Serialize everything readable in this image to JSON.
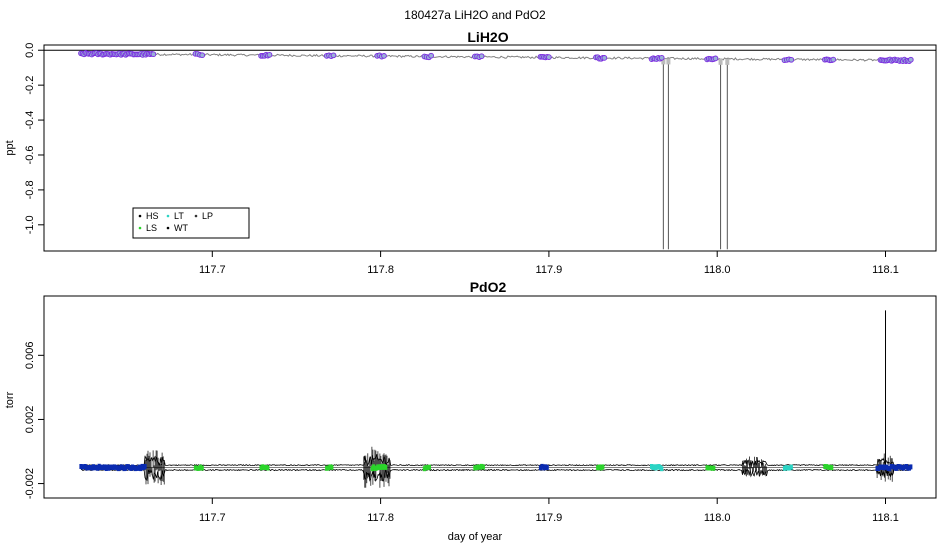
{
  "figure": {
    "main_title": "180427a   LiH2O and PdO2"
  },
  "chart_data": [
    {
      "type": "scatter",
      "title": "LiH2O",
      "xlabel": "",
      "ylabel": "ppt",
      "xlim": [
        117.6,
        118.13
      ],
      "ylim": [
        -1.15,
        0.03
      ],
      "x_ticks": [
        117.7,
        117.8,
        117.9,
        118.0,
        118.1
      ],
      "x_tick_labels": [
        "117.7",
        "117.8",
        "117.9",
        "118.0",
        "118.1"
      ],
      "y_ticks": [
        0.0,
        -0.2,
        -0.4,
        -0.6,
        -0.8,
        -1.0
      ],
      "y_tick_labels": [
        "0.0",
        "-0.2",
        "-0.4",
        "-0.6",
        "-0.8",
        "-1.0"
      ],
      "reference_line_y": 0.0,
      "trend": {
        "x": [
          117.622,
          118.115
        ],
        "y": [
          -0.02,
          -0.058
        ]
      },
      "spikes": [
        {
          "x": 117.968,
          "y_min": -1.14
        },
        {
          "x": 117.971,
          "y_min": -1.14
        },
        {
          "x": 118.002,
          "y_min": -1.14
        },
        {
          "x": 118.006,
          "y_min": -1.14
        }
      ],
      "clusters": [
        {
          "x0": 117.622,
          "x1": 117.665
        },
        {
          "x0": 117.69,
          "x1": 117.694
        },
        {
          "x0": 117.729,
          "x1": 117.734
        },
        {
          "x0": 117.768,
          "x1": 117.772
        },
        {
          "x0": 117.798,
          "x1": 117.802
        },
        {
          "x0": 117.826,
          "x1": 117.83
        },
        {
          "x0": 117.856,
          "x1": 117.86
        },
        {
          "x0": 117.895,
          "x1": 117.9
        },
        {
          "x0": 117.928,
          "x1": 117.933
        },
        {
          "x0": 117.961,
          "x1": 117.967
        },
        {
          "x0": 117.994,
          "x1": 117.999
        },
        {
          "x0": 118.04,
          "x1": 118.044
        },
        {
          "x0": 118.064,
          "x1": 118.069
        },
        {
          "x0": 118.097,
          "x1": 118.115
        }
      ],
      "legend": {
        "position": "bottom-left",
        "entries": [
          {
            "label": "HS",
            "color": "#000000"
          },
          {
            "label": "LT",
            "color": "#2bd4c4"
          },
          {
            "label": "LP",
            "color": "#333333"
          },
          {
            "label": "LS",
            "color": "#2bd42b"
          },
          {
            "label": "WT",
            "color": "#000000"
          }
        ]
      },
      "colors": {
        "trend": "#808080",
        "point_fill": "#9ab0d8",
        "point_edge": "#7b2be0",
        "spike": "#555555"
      }
    },
    {
      "type": "line",
      "title": "PdO2",
      "xlabel": "day of year",
      "ylabel": "torr",
      "xlim": [
        117.6,
        118.13
      ],
      "ylim": [
        -0.0029,
        0.0097
      ],
      "x_ticks": [
        117.7,
        117.8,
        117.9,
        118.0,
        118.1
      ],
      "x_tick_labels": [
        "117.7",
        "117.8",
        "117.9",
        "118.0",
        "118.1"
      ],
      "y_ticks": [
        0.006,
        0.002,
        -0.002
      ],
      "y_tick_labels": [
        "0.006",
        "0.002",
        "-0.002"
      ],
      "baseline": {
        "x": [
          117.622,
          118.115
        ],
        "y": [
          -0.001,
          -0.001
        ]
      },
      "spike": {
        "x": 118.1,
        "y_max": 0.0088
      },
      "noisy_regions": [
        {
          "x0": 117.66,
          "x1": 117.672,
          "amp": 0.0011
        },
        {
          "x0": 117.79,
          "x1": 117.806,
          "amp": 0.0013
        },
        {
          "x0": 118.015,
          "x1": 118.03,
          "amp": 0.0007
        },
        {
          "x0": 118.095,
          "x1": 118.105,
          "amp": 0.0009
        }
      ],
      "markers": [
        {
          "x0": 117.622,
          "x1": 117.66,
          "color": "#0a2bb0"
        },
        {
          "x0": 117.69,
          "x1": 117.694,
          "color": "#2bd42b"
        },
        {
          "x0": 117.729,
          "x1": 117.733,
          "color": "#2bd42b"
        },
        {
          "x0": 117.768,
          "x1": 117.771,
          "color": "#2bd42b"
        },
        {
          "x0": 117.795,
          "x1": 117.803,
          "color": "#2bd42b"
        },
        {
          "x0": 117.826,
          "x1": 117.829,
          "color": "#2bd42b"
        },
        {
          "x0": 117.856,
          "x1": 117.861,
          "color": "#2bd42b"
        },
        {
          "x0": 117.895,
          "x1": 117.899,
          "color": "#0a2bb0"
        },
        {
          "x0": 117.929,
          "x1": 117.932,
          "color": "#2bd42b"
        },
        {
          "x0": 117.961,
          "x1": 117.967,
          "color": "#2bd4c4"
        },
        {
          "x0": 117.994,
          "x1": 117.998,
          "color": "#2bd42b"
        },
        {
          "x0": 118.04,
          "x1": 118.044,
          "color": "#2bd4c4"
        },
        {
          "x0": 118.064,
          "x1": 118.068,
          "color": "#2bd42b"
        },
        {
          "x0": 118.095,
          "x1": 118.115,
          "color": "#0a2bb0"
        }
      ],
      "colors": {
        "line": "#000000",
        "baseline": "#808080"
      }
    }
  ]
}
